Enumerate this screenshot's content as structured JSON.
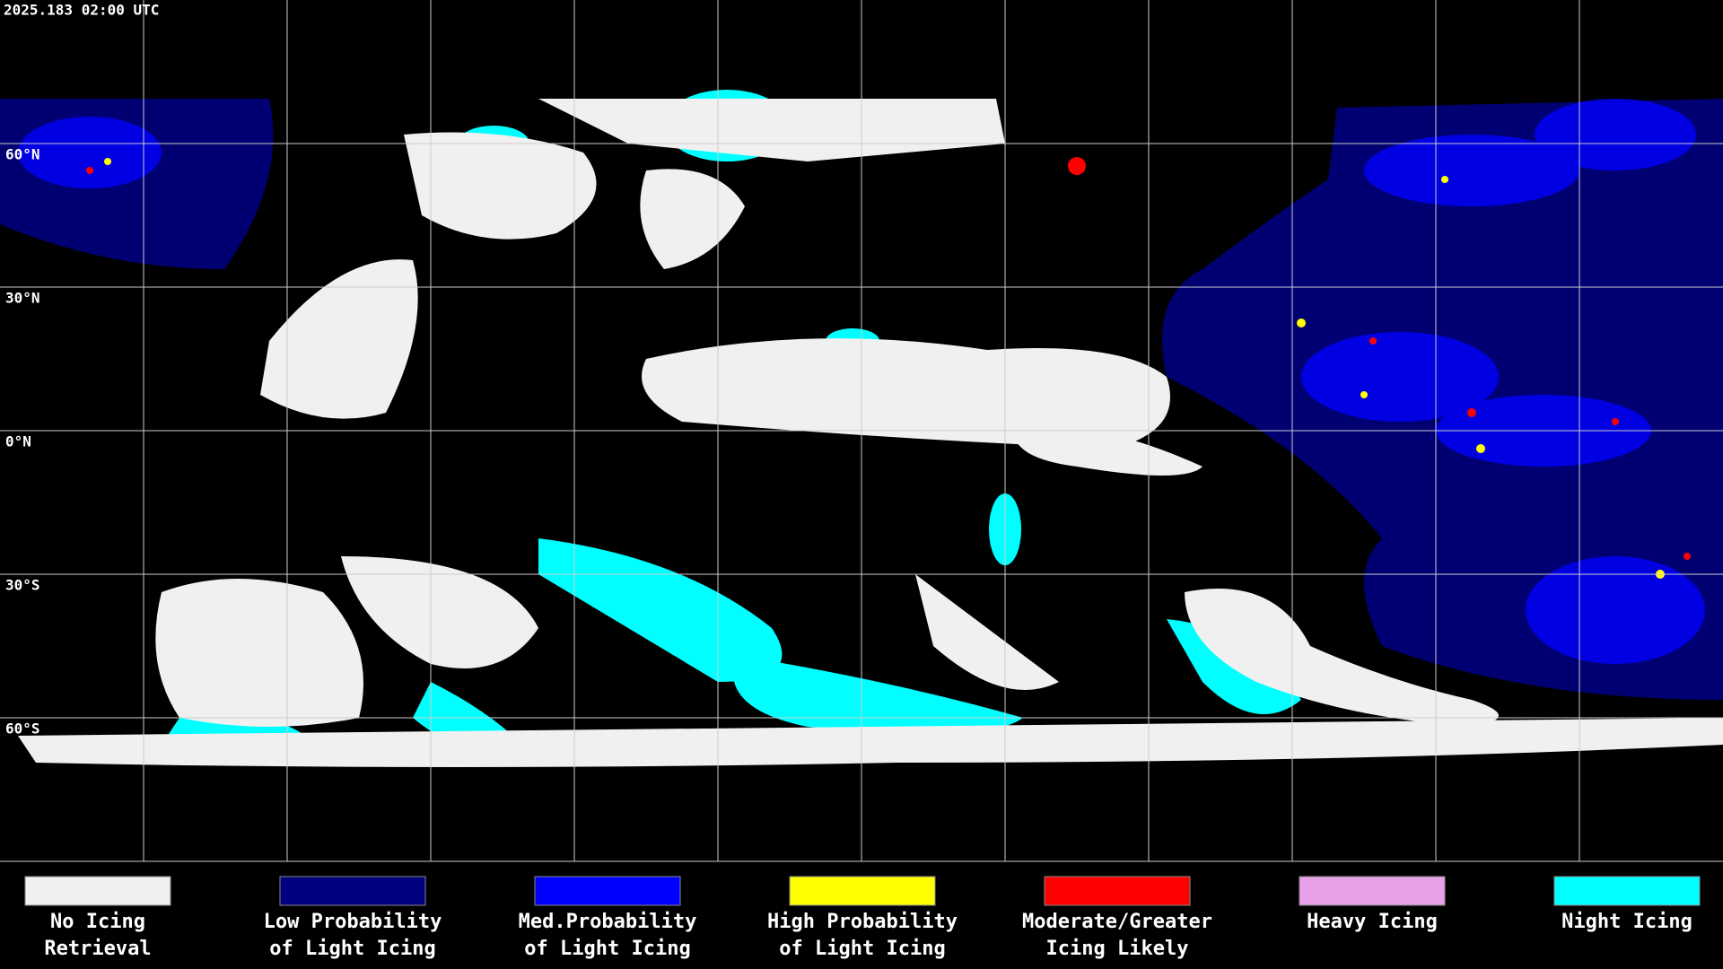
{
  "header": {
    "title": "2025.183 02:00 UTC"
  },
  "map": {
    "latitude_labels": [
      "60°N",
      "30°N",
      "0°N",
      "30°S",
      "60°S"
    ]
  },
  "legend": {
    "items": [
      {
        "label_lines": [
          "No Icing",
          "Retrieval"
        ],
        "color": "#f0f0f0"
      },
      {
        "label_lines": [
          "Low Probability",
          "of Light Icing"
        ],
        "color": "#000080"
      },
      {
        "label_lines": [
          "Med.Probability",
          "of Light Icing"
        ],
        "color": "#0000ff"
      },
      {
        "label_lines": [
          "High Probability",
          "of Light Icing"
        ],
        "color": "#ffff00"
      },
      {
        "label_lines": [
          "Moderate/Greater",
          "Icing Likely"
        ],
        "color": "#ff0000"
      },
      {
        "label_lines": [
          "Heavy Icing"
        ],
        "color": "#e8a0e8"
      },
      {
        "label_lines": [
          "Night Icing"
        ],
        "color": "#00ffff"
      }
    ]
  }
}
